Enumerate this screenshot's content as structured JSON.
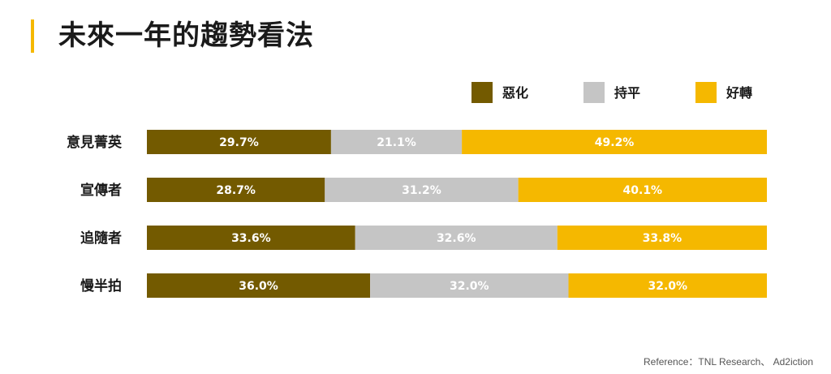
{
  "title": "未來一年的趨勢看法",
  "reference": "Reference：TNL Research、 Ad2iction",
  "colors": {
    "accent": "#f5b800",
    "worse": "#735a00",
    "flat": "#c5c5c5",
    "better": "#f5b800"
  },
  "chart_data": {
    "type": "bar",
    "orientation": "horizontal",
    "stacked": true,
    "normalized": true,
    "categories": [
      "意見菁英",
      "宣傳者",
      "追隨者",
      "慢半拍"
    ],
    "series": [
      {
        "name": "惡化",
        "color": "#735a00",
        "values": [
          29.7,
          28.7,
          33.6,
          36.0
        ],
        "labels": [
          "29.7%",
          "28.7%",
          "33.6%",
          "36.0%"
        ]
      },
      {
        "name": "持平",
        "color": "#c5c5c5",
        "values": [
          21.1,
          31.2,
          32.6,
          32.0
        ],
        "labels": [
          "21.1%",
          "31.2%",
          "32.6%",
          "32.0%"
        ]
      },
      {
        "name": "好轉",
        "color": "#f5b800",
        "values": [
          49.2,
          40.1,
          33.8,
          32.0
        ],
        "labels": [
          "49.2%",
          "40.1%",
          "33.8%",
          "32.0%"
        ]
      }
    ],
    "legend_position": "top-right",
    "grid": false
  }
}
